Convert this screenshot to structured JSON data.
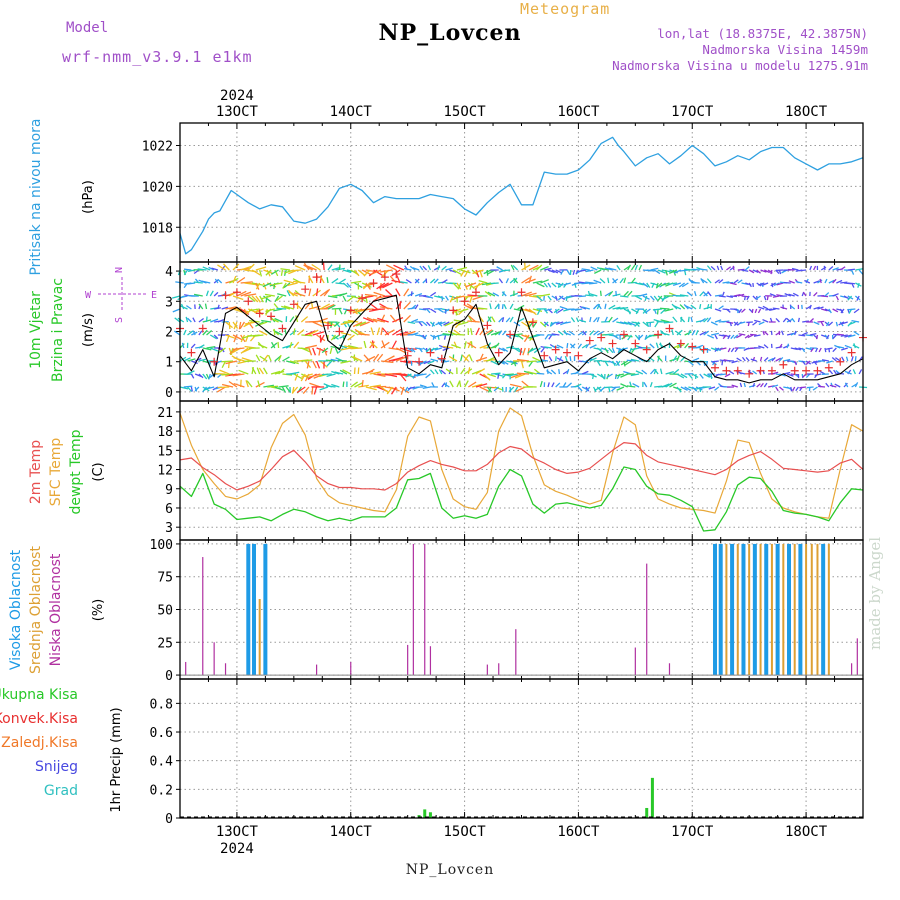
{
  "header": {
    "title": "NP_Lovcen",
    "meteogram_label": "Meteogram",
    "model_label": "Model",
    "model_name": "wrf-nmm_v3.9.1  e1km",
    "info_lines": [
      "lon,lat (18.8375E, 42.3875N)",
      "Nadmorska Visina 1459m",
      "Nadmorska Visina u modelu 1275.91m"
    ],
    "credit": "made by Angel",
    "bottom_station": "NP_Lovcen"
  },
  "time_axis": {
    "year": "2024",
    "day_range": [
      12.5,
      18.5
    ],
    "tick_days": [
      13,
      14,
      15,
      16,
      17,
      18
    ],
    "tick_labels": [
      "13OCT",
      "14OCT",
      "15OCT",
      "16OCT",
      "17OCT",
      "18OCT"
    ]
  },
  "colors": {
    "pressure": "#2ea0e0",
    "wind_speed": "#000000",
    "wind_gust": "#e83030",
    "temp_2m": "#e85050",
    "temp_sfc": "#e8a838",
    "temp_dew": "#28c828",
    "cloud_high": "#1e9be6",
    "cloud_mid": "#dda034",
    "cloud_low": "#b030a0",
    "precip_total": "#28c828",
    "precip_conv": "#e83030",
    "precip_frz": "#f07828",
    "precip_snow": "#4848e0",
    "precip_grad": "#30c0c0",
    "side_wind_axis": "#b040d0"
  },
  "panels": {
    "pressure": {
      "ylabel_left": "Pritisak na nivou mora",
      "unit": "(hPa)"
    },
    "wind": {
      "ylabel_lines": [
        "10m Vjetar",
        "Brzina i Pravac"
      ],
      "unit": "(m/s)",
      "compass_n": "N",
      "compass_s": "S",
      "compass_w": "W",
      "compass_e": "E"
    },
    "temp": {
      "ylabel_lines": [
        "2m Temp",
        "SFC Temp",
        "dewpt Temp"
      ],
      "unit": "(C)"
    },
    "cloud": {
      "ylabel_lines": [
        "Visoka Oblacnost",
        "Srednja Oblacnost",
        "Niska Oblacnost"
      ],
      "unit": "(%)"
    },
    "precip": {
      "legend": [
        "Ukupna Kisa",
        "Konvek.Kisa",
        "Zaledj.Kisa",
        "Snijeg",
        "Grad"
      ],
      "unit": "1hr Precip (mm)"
    }
  },
  "chart_data": [
    {
      "type": "line",
      "name": "pressure",
      "ylabel": "Pritisak na nivou mora (hPa)",
      "ylim": [
        1016.3,
        1023.1
      ],
      "yticks": [
        1018,
        1020,
        1022
      ],
      "x": [
        12.5,
        12.55,
        12.6,
        12.7,
        12.75,
        12.8,
        12.85,
        12.9,
        12.95,
        13.0,
        13.05,
        13.1,
        13.2,
        13.3,
        13.4,
        13.5,
        13.6,
        13.7,
        13.8,
        13.9,
        14.0,
        14.1,
        14.2,
        14.3,
        14.4,
        14.5,
        14.6,
        14.7,
        14.8,
        14.9,
        15.0,
        15.1,
        15.2,
        15.3,
        15.4,
        15.5,
        15.6,
        15.7,
        15.8,
        15.9,
        16.0,
        16.1,
        16.2,
        16.3,
        16.35,
        16.4,
        16.5,
        16.6,
        16.7,
        16.8,
        16.9,
        17.0,
        17.1,
        17.2,
        17.3,
        17.4,
        17.5,
        17.6,
        17.7,
        17.8,
        17.9,
        18.0,
        18.1,
        18.2,
        18.3,
        18.4,
        18.5
      ],
      "values": [
        1017.7,
        1016.7,
        1016.9,
        1017.8,
        1018.4,
        1018.7,
        1018.8,
        1019.3,
        1019.8,
        1019.6,
        1019.4,
        1019.2,
        1018.9,
        1019.1,
        1019.0,
        1018.3,
        1018.2,
        1018.4,
        1019.0,
        1019.9,
        1020.1,
        1019.8,
        1019.2,
        1019.5,
        1019.4,
        1019.4,
        1019.4,
        1019.6,
        1019.5,
        1019.4,
        1018.9,
        1018.6,
        1019.2,
        1019.7,
        1020.1,
        1019.1,
        1019.1,
        1020.7,
        1020.6,
        1020.6,
        1020.8,
        1021.3,
        1022.1,
        1022.4,
        1022.0,
        1021.7,
        1021.0,
        1021.4,
        1021.6,
        1021.1,
        1021.5,
        1022.0,
        1021.6,
        1021.0,
        1021.2,
        1021.5,
        1021.3,
        1021.7,
        1021.9,
        1021.9,
        1021.4,
        1021.1,
        1020.8,
        1021.1,
        1021.1,
        1021.2,
        1021.4
      ]
    },
    {
      "type": "line",
      "name": "wind",
      "ylabel": "10m Vjetar Brzina i Pravac (m/s)",
      "ylim": [
        -0.3,
        4.3
      ],
      "yticks": [
        0,
        1,
        2,
        3,
        4
      ],
      "x": [
        12.5,
        12.6,
        12.7,
        12.8,
        12.9,
        13.0,
        13.1,
        13.2,
        13.3,
        13.4,
        13.5,
        13.6,
        13.7,
        13.8,
        13.9,
        14.0,
        14.1,
        14.2,
        14.3,
        14.4,
        14.5,
        14.6,
        14.7,
        14.8,
        14.9,
        15.0,
        15.1,
        15.2,
        15.3,
        15.4,
        15.5,
        15.6,
        15.7,
        15.8,
        15.9,
        16.0,
        16.1,
        16.2,
        16.3,
        16.4,
        16.5,
        16.6,
        16.7,
        16.8,
        16.9,
        17.0,
        17.1,
        17.2,
        17.3,
        17.4,
        17.5,
        17.6,
        17.7,
        17.8,
        17.9,
        18.0,
        18.1,
        18.2,
        18.3,
        18.4,
        18.5
      ],
      "series": [
        {
          "name": "speed",
          "values": [
            1.2,
            0.7,
            1.4,
            0.5,
            2.6,
            2.8,
            2.5,
            2.2,
            1.9,
            1.7,
            2.3,
            2.9,
            3.0,
            1.7,
            1.4,
            2.2,
            2.6,
            3.0,
            3.1,
            3.2,
            0.8,
            0.6,
            0.9,
            0.8,
            2.2,
            2.4,
            2.9,
            1.6,
            0.9,
            1.3,
            2.8,
            1.8,
            0.8,
            0.9,
            1.0,
            0.7,
            1.1,
            1.3,
            1.1,
            1.4,
            1.2,
            1.0,
            1.4,
            1.6,
            1.2,
            1.0,
            1.0,
            0.5,
            0.4,
            0.4,
            0.3,
            0.4,
            0.4,
            0.6,
            0.4,
            0.4,
            0.4,
            0.5,
            0.6,
            0.9,
            1.1
          ]
        },
        {
          "name": "gust",
          "values": [
            2.1,
            1.3,
            2.1,
            1.0,
            3.2,
            3.3,
            3.0,
            2.6,
            2.5,
            2.1,
            2.9,
            3.4,
            3.8,
            2.2,
            2.0,
            2.7,
            3.1,
            3.6,
            3.8,
            3.9,
            1.2,
            1.0,
            1.3,
            1.1,
            2.7,
            3.0,
            3.3,
            2.2,
            1.3,
            1.9,
            3.3,
            2.3,
            1.2,
            1.4,
            1.3,
            1.2,
            1.7,
            1.8,
            1.6,
            1.9,
            1.6,
            1.4,
            1.9,
            2.1,
            1.6,
            1.5,
            1.4,
            0.8,
            0.7,
            0.7,
            0.6,
            0.7,
            0.7,
            0.9,
            0.7,
            0.7,
            0.7,
            0.8,
            1.0,
            1.3,
            1.8
          ]
        }
      ]
    },
    {
      "type": "line",
      "name": "temperature",
      "ylabel": "2m Temp / SFC Temp / dewpt Temp (C)",
      "ylim": [
        1,
        22.7
      ],
      "yticks": [
        3,
        6,
        9,
        12,
        15,
        18,
        21
      ],
      "x": [
        12.5,
        12.6,
        12.7,
        12.8,
        12.9,
        13.0,
        13.1,
        13.2,
        13.3,
        13.4,
        13.5,
        13.6,
        13.7,
        13.8,
        13.9,
        14.0,
        14.1,
        14.2,
        14.3,
        14.4,
        14.5,
        14.6,
        14.7,
        14.8,
        14.9,
        15.0,
        15.1,
        15.2,
        15.3,
        15.4,
        15.5,
        15.6,
        15.7,
        15.8,
        15.9,
        16.0,
        16.1,
        16.2,
        16.3,
        16.4,
        16.5,
        16.6,
        16.7,
        16.8,
        16.9,
        17.0,
        17.1,
        17.2,
        17.3,
        17.4,
        17.5,
        17.6,
        17.7,
        17.8,
        17.9,
        18.0,
        18.1,
        18.2,
        18.3,
        18.4,
        18.5
      ],
      "series": [
        {
          "name": "2m",
          "values": [
            13.5,
            13.8,
            12.3,
            11.2,
            9.8,
            8.8,
            9.4,
            10.2,
            12.0,
            14.0,
            15.0,
            13.2,
            11.0,
            9.8,
            9.2,
            9.2,
            9.0,
            9.0,
            8.8,
            9.8,
            11.6,
            12.6,
            13.4,
            12.8,
            12.4,
            11.8,
            11.8,
            12.8,
            14.6,
            15.6,
            15.2,
            13.8,
            13.0,
            12.0,
            11.4,
            11.6,
            12.2,
            13.6,
            15.0,
            16.2,
            16.0,
            14.2,
            13.2,
            12.8,
            12.4,
            12.0,
            11.6,
            11.2,
            12.0,
            13.4,
            14.2,
            14.8,
            13.6,
            12.2,
            12.0,
            11.8,
            11.6,
            11.8,
            13.0,
            13.6,
            12.0
          ]
        },
        {
          "name": "SFC",
          "values": [
            20.8,
            15.8,
            12.0,
            9.8,
            7.8,
            7.4,
            8.2,
            9.6,
            15.4,
            19.2,
            20.6,
            17.4,
            10.6,
            8.0,
            6.8,
            6.4,
            6.0,
            5.6,
            5.4,
            8.8,
            17.2,
            20.2,
            19.6,
            12.0,
            7.4,
            6.2,
            5.8,
            8.4,
            18.0,
            21.6,
            20.4,
            14.2,
            9.6,
            8.6,
            8.0,
            7.2,
            6.6,
            7.2,
            14.6,
            20.2,
            19.0,
            11.0,
            7.4,
            6.6,
            6.0,
            5.8,
            5.6,
            5.2,
            10.2,
            16.6,
            16.2,
            11.4,
            7.4,
            6.0,
            5.4,
            5.0,
            4.6,
            4.4,
            12.0,
            19.0,
            18.0
          ]
        },
        {
          "name": "dewpt",
          "values": [
            9.4,
            7.8,
            11.4,
            6.6,
            5.8,
            4.2,
            4.4,
            4.6,
            4.0,
            5.0,
            5.8,
            5.4,
            4.6,
            4.0,
            4.4,
            4.0,
            4.6,
            4.6,
            4.6,
            6.0,
            10.4,
            10.6,
            11.4,
            6.0,
            4.4,
            4.8,
            4.4,
            5.0,
            9.4,
            12.0,
            11.0,
            6.6,
            5.2,
            6.6,
            6.8,
            6.4,
            6.0,
            6.4,
            9.0,
            12.4,
            12.0,
            9.4,
            8.2,
            8.0,
            7.2,
            6.2,
            2.4,
            2.6,
            5.4,
            9.6,
            10.8,
            10.6,
            8.6,
            5.6,
            5.2,
            5.0,
            4.6,
            4.0,
            6.8,
            9.0,
            8.8
          ]
        }
      ]
    },
    {
      "type": "bar",
      "name": "cloud",
      "ylabel": "Visoka / Srednja / Niska Oblacnost (%)",
      "ylim": [
        -3,
        103
      ],
      "yticks": [
        0,
        25,
        50,
        75,
        100
      ],
      "series": [
        {
          "name": "high",
          "x": [
            13.1,
            13.15,
            13.25,
            17.2,
            17.25,
            17.35,
            17.45,
            17.55,
            17.65,
            17.75,
            17.85,
            17.95,
            18.15
          ],
          "values": [
            100,
            100,
            100,
            100,
            100,
            100,
            100,
            100,
            100,
            100,
            100,
            100,
            100
          ]
        },
        {
          "name": "mid",
          "x": [
            13.2,
            17.3,
            17.4,
            17.5,
            17.6,
            17.7,
            17.8,
            17.9,
            18.0,
            18.05,
            18.1,
            18.2
          ],
          "values": [
            58,
            100,
            100,
            100,
            100,
            100,
            100,
            100,
            100,
            100,
            100,
            100
          ]
        },
        {
          "name": "low",
          "x": [
            12.55,
            12.7,
            12.8,
            12.9,
            13.7,
            14.0,
            14.5,
            14.55,
            14.65,
            14.7,
            15.2,
            15.3,
            15.45,
            16.5,
            16.6,
            16.8,
            18.4,
            18.45
          ],
          "values": [
            10,
            90,
            25,
            9,
            8,
            10,
            23,
            100,
            100,
            22,
            8,
            9,
            35,
            21,
            85,
            9,
            9,
            28
          ]
        }
      ]
    },
    {
      "type": "bar",
      "name": "precip",
      "ylabel": "1hr Precip (mm)",
      "ylim": [
        0,
        0.97
      ],
      "yticks": [
        0,
        0.2,
        0.4,
        0.6,
        0.8
      ],
      "x": [
        14.6,
        14.65,
        14.7,
        16.6,
        16.65
      ],
      "values": [
        0.02,
        0.06,
        0.04,
        0.07,
        0.28
      ]
    }
  ]
}
